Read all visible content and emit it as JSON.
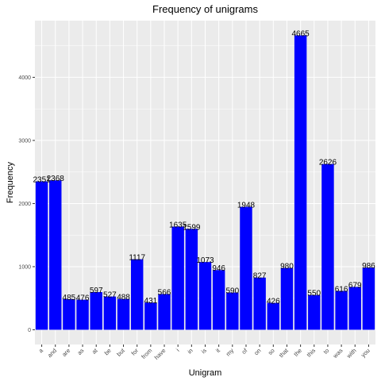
{
  "chart_data": {
    "type": "bar",
    "title": "Frequency of unigrams",
    "xlabel": "Unigram",
    "ylabel": "Frequency",
    "categories": [
      "a",
      "and",
      "are",
      "as",
      "at",
      "be",
      "but",
      "for",
      "from",
      "have",
      "i",
      "in",
      "is",
      "it",
      "my",
      "of",
      "on",
      "so",
      "that",
      "the",
      "this",
      "to",
      "was",
      "with",
      "you"
    ],
    "values": [
      2351,
      2368,
      485,
      476,
      597,
      527,
      488,
      1117,
      431,
      566,
      1635,
      1599,
      1073,
      946,
      590,
      1948,
      827,
      426,
      980,
      4665,
      550,
      2626,
      616,
      679,
      986
    ],
    "data_labels": [
      "2351",
      "2368",
      "485",
      "476",
      "597",
      "527",
      "488",
      "1117",
      "431",
      "566",
      "1635",
      "1599",
      "1073",
      "946",
      "590",
      "1948",
      "827",
      "426",
      "980",
      "4665",
      "550",
      "2626",
      "616",
      "679",
      "986"
    ],
    "yticks": [
      0,
      1000,
      2000,
      3000,
      4000
    ],
    "ytick_labels": [
      "0",
      "1000",
      "2000",
      "3000",
      "4000"
    ],
    "ylim": [
      -233,
      4898
    ],
    "grid": true,
    "bar_color": "#0000ff",
    "panel_color": "#ebebeb",
    "grid_color": "#ffffff"
  }
}
